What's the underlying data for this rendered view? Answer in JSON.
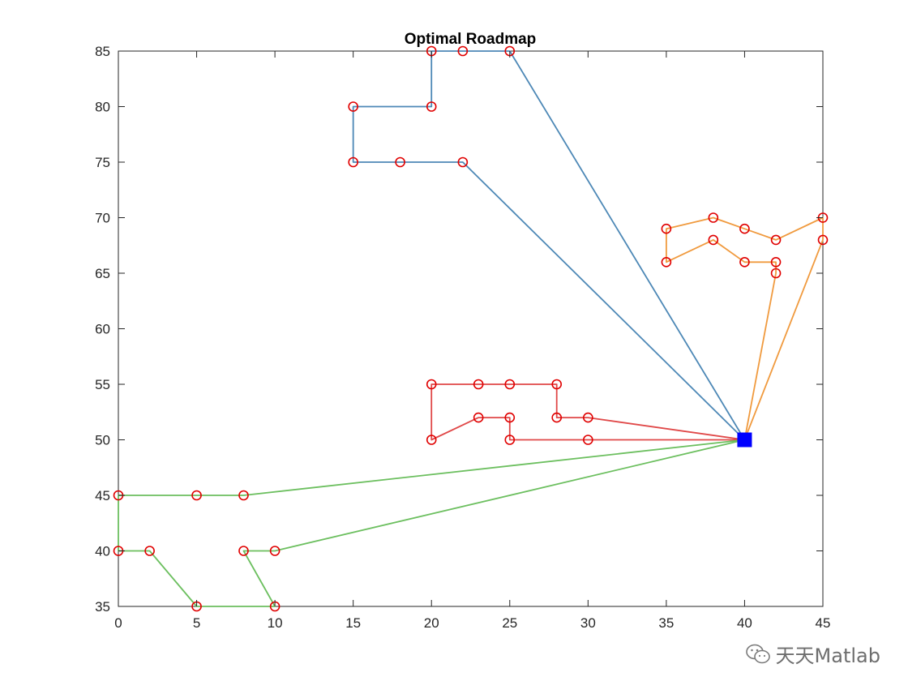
{
  "chart_data": {
    "type": "line",
    "title": "Optimal Roadmap",
    "xlabel": "",
    "ylabel": "",
    "xlim": [
      0,
      45
    ],
    "ylim": [
      35,
      85
    ],
    "xticks": [
      0,
      5,
      10,
      15,
      20,
      25,
      30,
      35,
      40,
      45
    ],
    "yticks": [
      35,
      40,
      45,
      50,
      55,
      60,
      65,
      70,
      75,
      80,
      85
    ],
    "grid": false,
    "depot": {
      "x": 40,
      "y": 50,
      "color": "#0000ff",
      "marker": "square"
    },
    "node_marker": {
      "color": "#e00000",
      "shape": "circle"
    },
    "series": [
      {
        "color": "#4d88b6",
        "x": [
          40,
          22,
          18,
          15,
          15,
          20,
          20,
          22,
          25,
          40
        ],
        "y": [
          50,
          75,
          75,
          75,
          80,
          80,
          85,
          85,
          85,
          50
        ]
      },
      {
        "color": "#f09a3e",
        "x": [
          40,
          42,
          42,
          40,
          38,
          35,
          35,
          38,
          40,
          42,
          45,
          45,
          40
        ],
        "y": [
          50,
          65,
          66,
          66,
          68,
          66,
          69,
          70,
          69,
          68,
          70,
          68,
          50
        ]
      },
      {
        "color": "#e04848",
        "x": [
          40,
          30,
          28,
          28,
          25,
          23,
          20,
          20,
          23,
          25,
          25,
          30,
          40
        ],
        "y": [
          50,
          52,
          52,
          55,
          55,
          55,
          55,
          50,
          52,
          52,
          50,
          50,
          50
        ]
      },
      {
        "color": "#6cbf5f",
        "x": [
          40,
          10,
          8,
          10,
          5,
          2,
          0,
          0,
          5,
          8,
          40
        ],
        "y": [
          50,
          40,
          40,
          35,
          35,
          40,
          40,
          45,
          45,
          45,
          50
        ]
      }
    ]
  },
  "watermark": {
    "text": "天天Matlab",
    "icon": "wechat-icon"
  }
}
